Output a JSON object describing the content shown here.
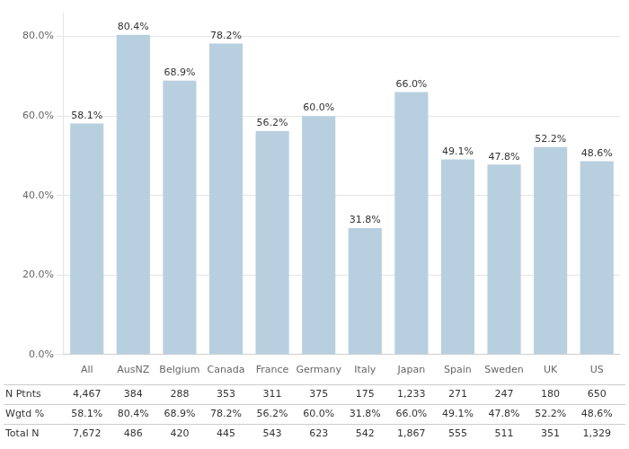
{
  "chart_data": {
    "type": "bar",
    "categories": [
      "All",
      "AusNZ",
      "Belgium",
      "Canada",
      "France",
      "Germany",
      "Italy",
      "Japan",
      "Spain",
      "Sweden",
      "UK",
      "US"
    ],
    "values": [
      58.1,
      80.4,
      68.9,
      78.2,
      56.2,
      60.0,
      31.8,
      66.0,
      49.1,
      47.8,
      52.2,
      48.6
    ],
    "value_labels": [
      "58.1%",
      "80.4%",
      "68.9%",
      "78.2%",
      "56.2%",
      "60.0%",
      "31.8%",
      "66.0%",
      "49.1%",
      "47.8%",
      "52.2%",
      "48.6%"
    ],
    "data_labels": true,
    "color": "#b8cfe0",
    "ylim": [
      0,
      86
    ],
    "yticks": [
      {
        "value": 0,
        "label": "0.0%"
      },
      {
        "value": 20,
        "label": "20.0%"
      },
      {
        "value": 40,
        "label": "40.0%"
      },
      {
        "value": 60,
        "label": "60.0%"
      },
      {
        "value": 80,
        "label": "80.0%"
      }
    ],
    "grid": true,
    "table": {
      "row_labels": [
        "N Ptnts",
        "Wgtd %",
        "Total N"
      ],
      "rows": [
        [
          "4,467",
          "384",
          "288",
          "353",
          "311",
          "375",
          "175",
          "1,233",
          "271",
          "247",
          "180",
          "650"
        ],
        [
          "58.1%",
          "80.4%",
          "68.9%",
          "78.2%",
          "56.2%",
          "60.0%",
          "31.8%",
          "66.0%",
          "49.1%",
          "47.8%",
          "52.2%",
          "48.6%"
        ],
        [
          "7,672",
          "486",
          "420",
          "445",
          "543",
          "623",
          "542",
          "1,867",
          "555",
          "511",
          "351",
          "1,329"
        ]
      ]
    }
  }
}
